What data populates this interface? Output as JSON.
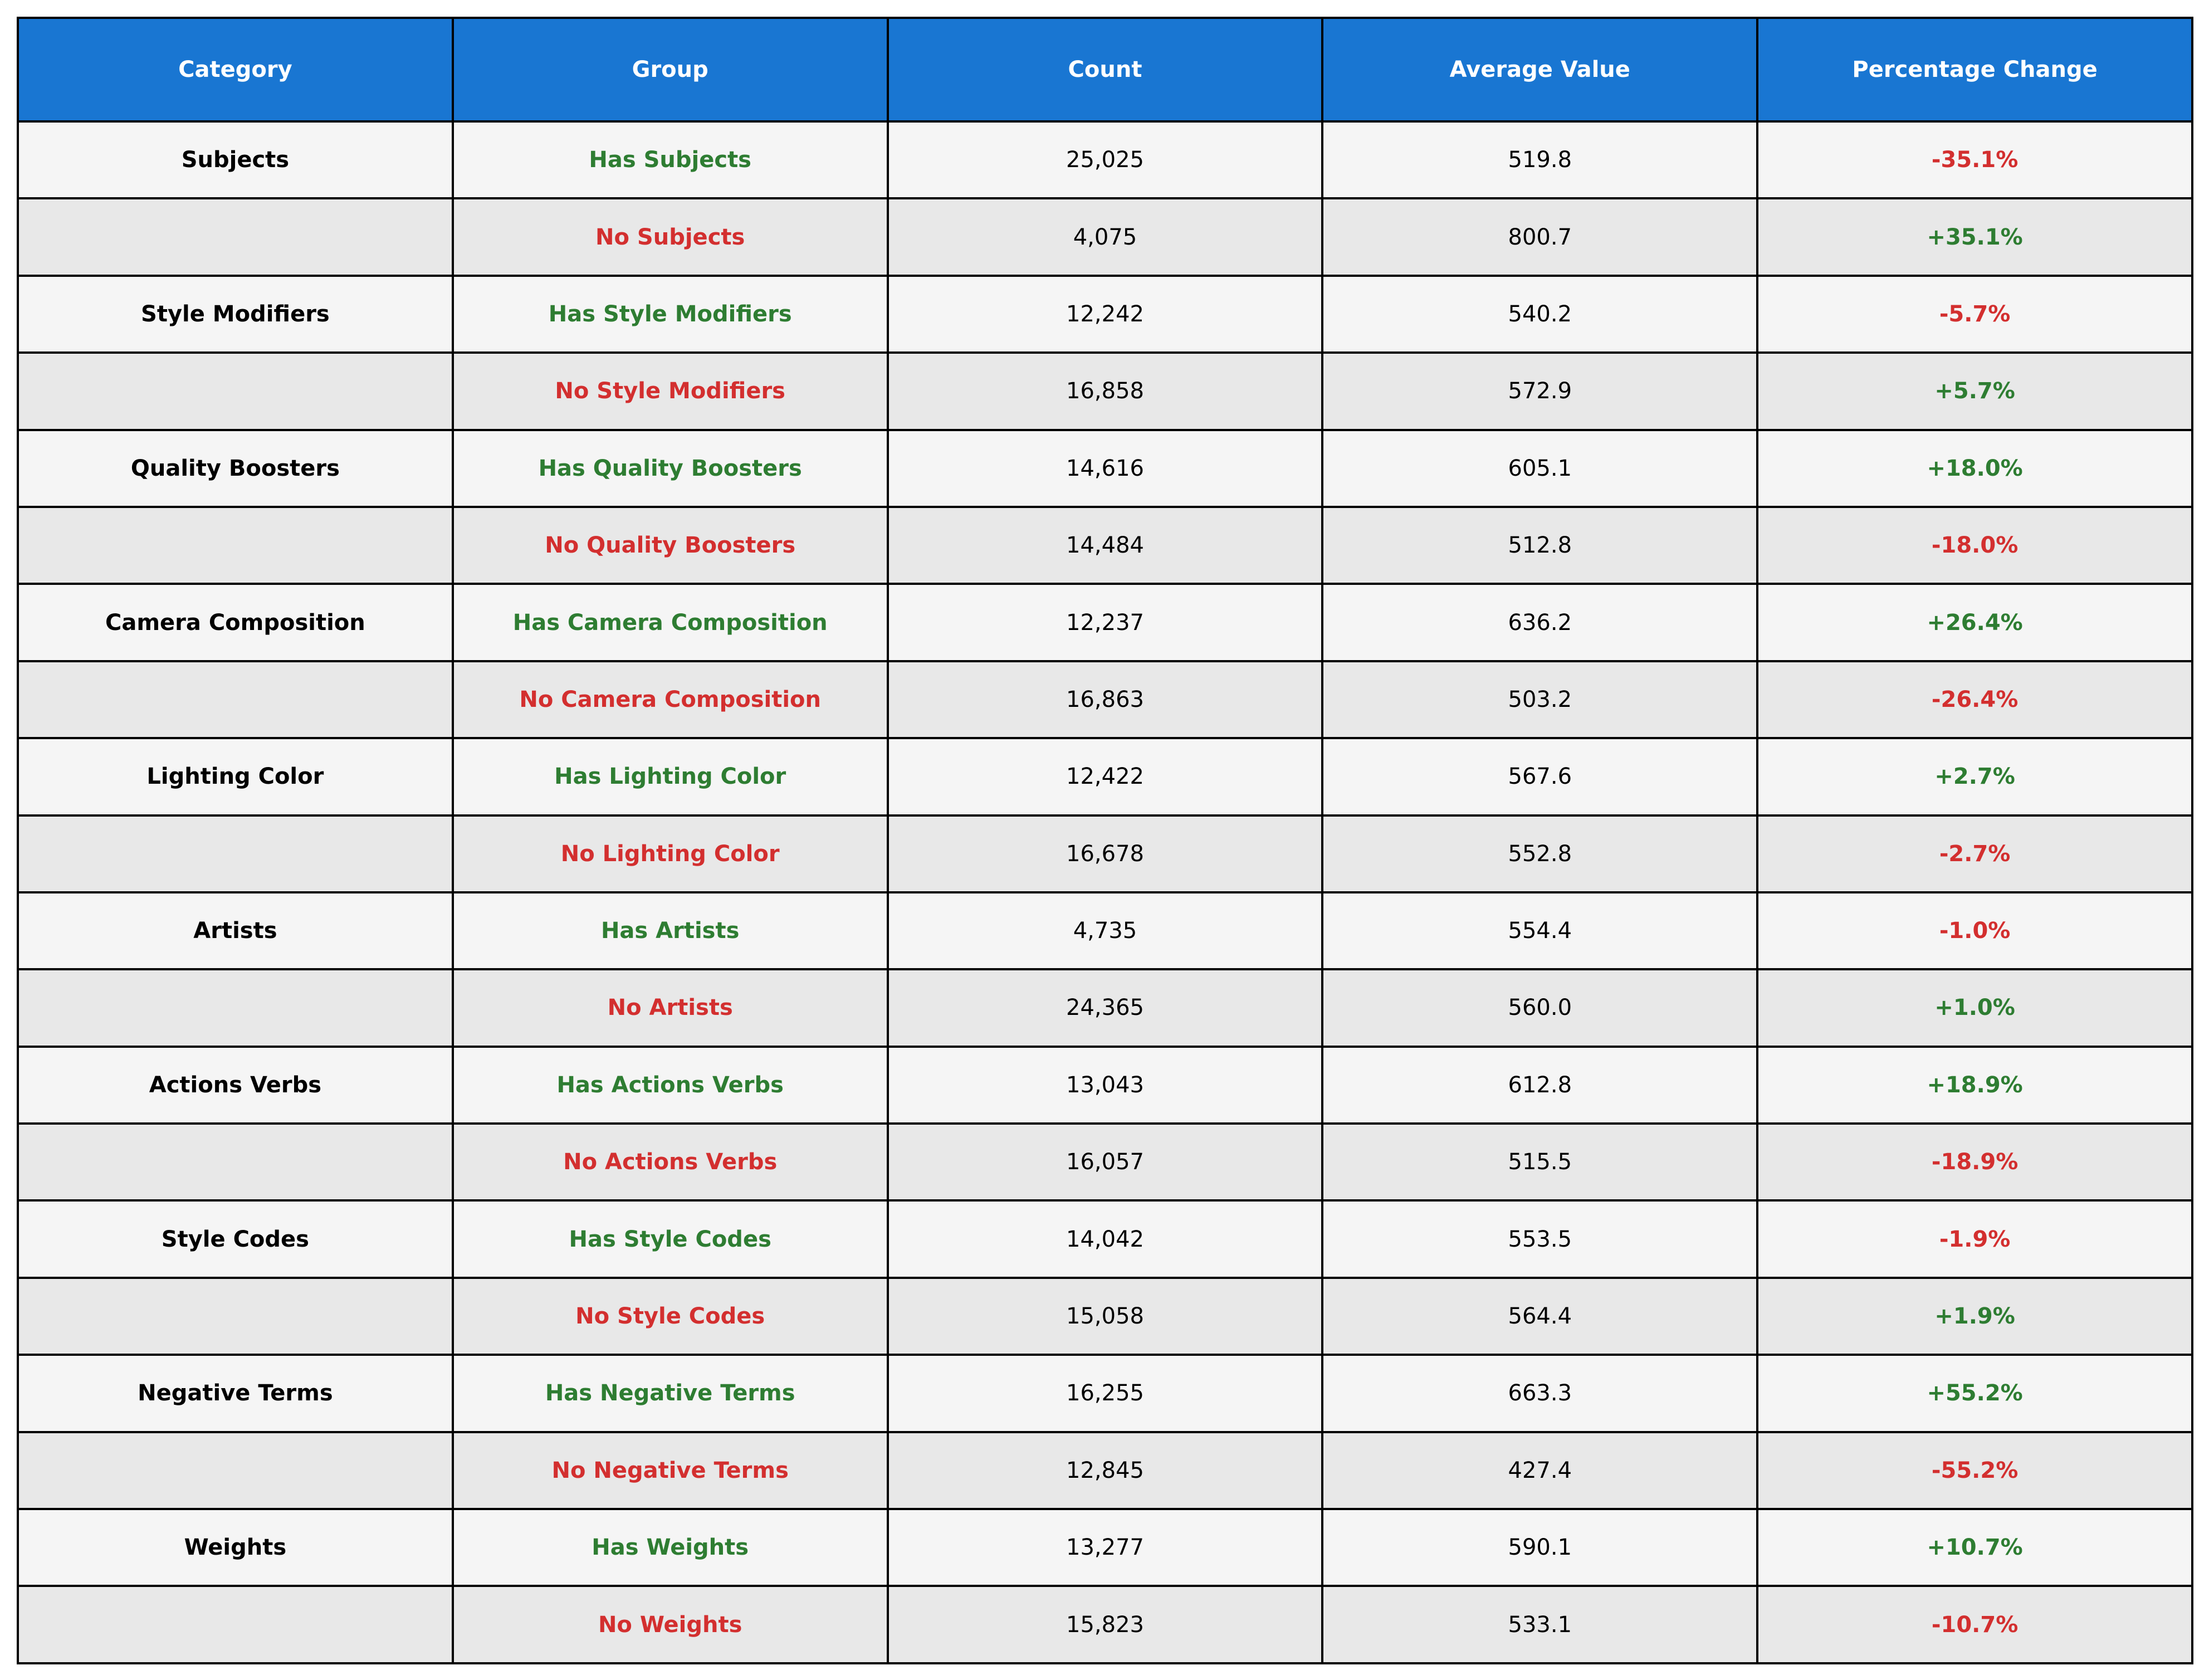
{
  "chart_data": {
    "type": "table",
    "columns": [
      "Category",
      "Group",
      "Count",
      "Average Value",
      "Percentage Change"
    ],
    "colors": {
      "header_bg": "#1976d2",
      "header_text": "#ffffff",
      "positive": "#2e7d32",
      "negative": "#d32f2f",
      "row_light": "#f5f5f5",
      "row_dark": "#e8e8e8"
    },
    "rows": [
      {
        "category": "Subjects",
        "group": "Has Subjects",
        "count": "25,025",
        "avg": "519.8",
        "pct": "-35.1%"
      },
      {
        "category": "",
        "group": "No Subjects",
        "count": "4,075",
        "avg": "800.7",
        "pct": "+35.1%"
      },
      {
        "category": "Style Modifiers",
        "group": "Has Style Modifiers",
        "count": "12,242",
        "avg": "540.2",
        "pct": "-5.7%"
      },
      {
        "category": "",
        "group": "No Style Modifiers",
        "count": "16,858",
        "avg": "572.9",
        "pct": "+5.7%"
      },
      {
        "category": "Quality Boosters",
        "group": "Has Quality Boosters",
        "count": "14,616",
        "avg": "605.1",
        "pct": "+18.0%"
      },
      {
        "category": "",
        "group": "No Quality Boosters",
        "count": "14,484",
        "avg": "512.8",
        "pct": "-18.0%"
      },
      {
        "category": "Camera Composition",
        "group": "Has Camera Composition",
        "count": "12,237",
        "avg": "636.2",
        "pct": "+26.4%"
      },
      {
        "category": "",
        "group": "No Camera Composition",
        "count": "16,863",
        "avg": "503.2",
        "pct": "-26.4%"
      },
      {
        "category": "Lighting Color",
        "group": "Has Lighting Color",
        "count": "12,422",
        "avg": "567.6",
        "pct": "+2.7%"
      },
      {
        "category": "",
        "group": "No Lighting Color",
        "count": "16,678",
        "avg": "552.8",
        "pct": "-2.7%"
      },
      {
        "category": "Artists",
        "group": "Has Artists",
        "count": "4,735",
        "avg": "554.4",
        "pct": "-1.0%"
      },
      {
        "category": "",
        "group": "No Artists",
        "count": "24,365",
        "avg": "560.0",
        "pct": "+1.0%"
      },
      {
        "category": "Actions Verbs",
        "group": "Has Actions Verbs",
        "count": "13,043",
        "avg": "612.8",
        "pct": "+18.9%"
      },
      {
        "category": "",
        "group": "No Actions Verbs",
        "count": "16,057",
        "avg": "515.5",
        "pct": "-18.9%"
      },
      {
        "category": "Style Codes",
        "group": "Has Style Codes",
        "count": "14,042",
        "avg": "553.5",
        "pct": "-1.9%"
      },
      {
        "category": "",
        "group": "No Style Codes",
        "count": "15,058",
        "avg": "564.4",
        "pct": "+1.9%"
      },
      {
        "category": "Negative Terms",
        "group": "Has Negative Terms",
        "count": "16,255",
        "avg": "663.3",
        "pct": "+55.2%"
      },
      {
        "category": "",
        "group": "No Negative Terms",
        "count": "12,845",
        "avg": "427.4",
        "pct": "-55.2%"
      },
      {
        "category": "Weights",
        "group": "Has Weights",
        "count": "13,277",
        "avg": "590.1",
        "pct": "+10.7%"
      },
      {
        "category": "",
        "group": "No Weights",
        "count": "15,823",
        "avg": "533.1",
        "pct": "-10.7%"
      }
    ]
  }
}
